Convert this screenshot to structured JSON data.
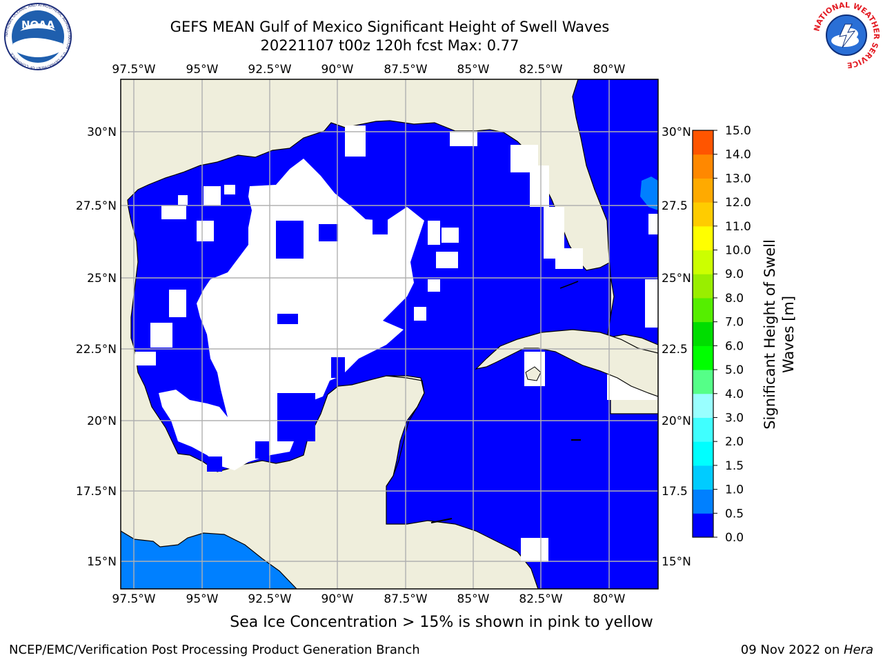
{
  "header": {
    "title_line1": "GEFS MEAN Gulf of Mexico Significant Height of Swell Waves",
    "title_line2": "20221107 t00z 120h fcst   Max: 0.77"
  },
  "logos": {
    "left": {
      "icon": "noaa-logo-icon",
      "text": "NOAA",
      "ring_text": "NATIONAL OCEANIC AND ATMOSPHERIC ADMINISTRATION · U.S. DEPARTMENT OF COMMERCE"
    },
    "right": {
      "icon": "nws-logo-icon",
      "ring_text": "NATIONAL WEATHER SERVICE"
    }
  },
  "map": {
    "lon_labels": [
      "97.5°W",
      "95°W",
      "92.5°W",
      "90°W",
      "87.5°W",
      "85°W",
      "82.5°W",
      "80°W"
    ],
    "lat_labels": [
      "30°N",
      "27.5°N",
      "25°N",
      "22.5°N",
      "20°N",
      "17.5°N",
      "15°N"
    ],
    "lat_labels_right": [
      "30°N",
      "27.5",
      "25°N",
      "22.5",
      "20°N",
      "17.5",
      "15°N"
    ],
    "colors": {
      "land": "#efeedc",
      "sea_low": "#0000ff",
      "sea_mid": "#0080ff",
      "no_data": "#ffffff",
      "grid": "#b0b0b0"
    }
  },
  "colorbar": {
    "label": "Significant Height of Swell Waves [m]",
    "label_line1": "Significant Height of Swell",
    "label_line2": "Waves [m]",
    "ticks": [
      "0.0",
      "0.5",
      "1.0",
      "1.5",
      "2.0",
      "3.0",
      "4.0",
      "5.0",
      "6.0",
      "7.0",
      "8.0",
      "9.0",
      "10.0",
      "11.0",
      "12.0",
      "13.0",
      "14.0",
      "15.0"
    ],
    "colors": [
      "#0000ff",
      "#0080ff",
      "#00ccff",
      "#00ffff",
      "#40ffff",
      "#99ffff",
      "#55ff88",
      "#00ff00",
      "#00dd00",
      "#55ee00",
      "#99ee00",
      "#ccff00",
      "#ffff00",
      "#ffcc00",
      "#ffaa00",
      "#ff8800",
      "#ff5500",
      "#ff2200",
      "#ff0000"
    ]
  },
  "subnote": "Sea Ice Concentration > 15% is shown in pink to yellow",
  "footer": {
    "left": "NCEP/EMC/Verification Post Processing Product Generation Branch",
    "right_date": "09 Nov 2022 on ",
    "right_host": "Hera"
  }
}
